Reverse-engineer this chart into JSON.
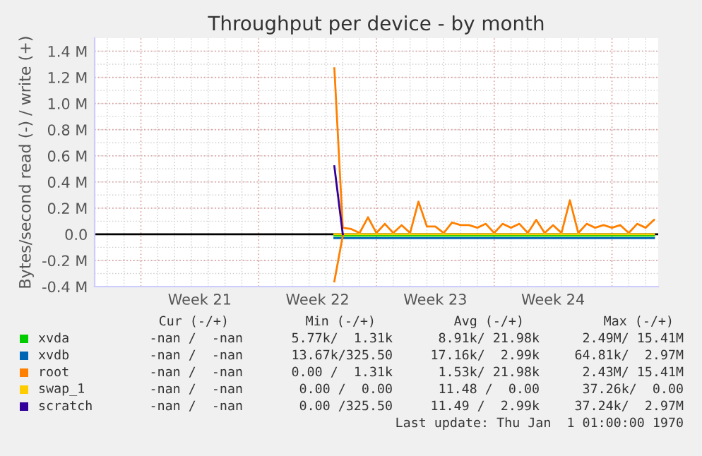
{
  "chart_data": {
    "type": "line",
    "title": "Throughput per device - by month",
    "ylabel": "Bytes/second read (-) / write (+)",
    "categories": [
      null,
      null,
      null,
      null,
      null,
      null,
      null,
      null,
      null,
      null,
      null,
      null,
      "Week 21",
      null,
      null,
      null,
      null,
      null,
      null,
      null,
      null,
      null,
      null,
      null,
      null,
      null,
      "Week 22",
      null,
      null,
      null,
      null,
      null,
      null,
      null,
      null,
      null,
      null,
      null,
      null,
      null,
      "Week 23",
      null,
      null,
      null,
      null,
      null,
      null,
      null,
      null,
      null,
      null,
      null,
      null,
      null,
      "Week 24",
      null,
      null,
      null,
      null,
      null,
      null,
      null,
      null,
      null,
      null,
      null,
      null
    ],
    "ylim": [
      -0.4,
      1.5
    ],
    "yticks": [
      {
        "value": -0.4,
        "label": "-0.4 M"
      },
      {
        "value": -0.2,
        "label": "-0.2 M"
      },
      {
        "value": 0,
        "label": "0.0"
      },
      {
        "value": 0.2,
        "label": "0.2 M"
      },
      {
        "value": 0.4,
        "label": "0.4 M"
      },
      {
        "value": 0.6,
        "label": "0.6 M"
      },
      {
        "value": 0.8,
        "label": "0.8 M"
      },
      {
        "value": 1.0,
        "label": "1.0 M"
      },
      {
        "value": 1.2,
        "label": "1.2 M"
      },
      {
        "value": 1.4,
        "label": "1.4 M"
      }
    ],
    "grid": true,
    "legend": "bottom",
    "ref_lines": [
      {
        "axis": "y",
        "value": 0,
        "color": "#000000"
      }
    ],
    "series": [
      {
        "name": "xvda",
        "color": "#00cc00",
        "values": [
          null,
          null,
          null,
          null,
          null,
          null,
          null,
          null,
          null,
          null,
          null,
          null,
          null,
          null,
          null,
          null,
          null,
          null,
          null,
          null,
          null,
          null,
          null,
          null,
          null,
          null,
          null,
          null,
          -0.01,
          -0.01,
          -0.01,
          -0.01,
          -0.01,
          -0.01,
          -0.01,
          -0.01,
          -0.01,
          -0.01,
          -0.01,
          -0.01,
          -0.01,
          -0.01,
          -0.01,
          -0.01,
          -0.01,
          -0.01,
          -0.01,
          -0.01,
          -0.01,
          -0.01,
          -0.01,
          -0.01,
          -0.01,
          -0.01,
          -0.01,
          -0.01,
          -0.01,
          -0.01,
          -0.01,
          -0.01,
          -0.01,
          -0.01,
          -0.01,
          -0.01,
          -0.01,
          -0.01,
          -0.01
        ]
      },
      {
        "name": "xvdb",
        "color": "#0066b3",
        "values": [
          null,
          null,
          null,
          null,
          null,
          null,
          null,
          null,
          null,
          null,
          null,
          null,
          null,
          null,
          null,
          null,
          null,
          null,
          null,
          null,
          null,
          null,
          null,
          null,
          null,
          null,
          null,
          null,
          -0.03,
          -0.03,
          -0.03,
          -0.03,
          -0.03,
          -0.03,
          -0.03,
          -0.03,
          -0.03,
          -0.03,
          -0.03,
          -0.03,
          -0.03,
          -0.03,
          -0.03,
          -0.03,
          -0.03,
          -0.03,
          -0.03,
          -0.03,
          -0.03,
          -0.03,
          -0.03,
          -0.03,
          -0.03,
          -0.03,
          -0.03,
          -0.03,
          -0.03,
          -0.03,
          -0.03,
          -0.03,
          -0.03,
          -0.03,
          -0.03,
          -0.03,
          -0.03,
          -0.03,
          -0.03
        ]
      },
      {
        "name": "root",
        "color": "#ff8000",
        "values": [
          null,
          null,
          null,
          null,
          null,
          null,
          null,
          null,
          null,
          null,
          null,
          null,
          null,
          null,
          null,
          null,
          null,
          null,
          null,
          null,
          null,
          null,
          null,
          null,
          null,
          null,
          null,
          null,
          1.27,
          0.05,
          0.04,
          0.01,
          0.13,
          0.01,
          0.08,
          0.01,
          0.07,
          0.01,
          0.25,
          0.06,
          0.06,
          0.01,
          0.09,
          0.07,
          0.07,
          0.05,
          0.08,
          0.01,
          0.08,
          0.05,
          0.08,
          0.01,
          0.11,
          0.01,
          0.07,
          0.01,
          0.26,
          0.01,
          0.08,
          0.05,
          0.07,
          0.05,
          0.07,
          0.01,
          0.08,
          0.05,
          0.11
        ]
      },
      {
        "color": "#ff8000",
        "values": [
          null,
          null,
          null,
          null,
          null,
          null,
          null,
          null,
          null,
          null,
          null,
          null,
          null,
          null,
          null,
          null,
          null,
          null,
          null,
          null,
          null,
          null,
          null,
          null,
          null,
          null,
          null,
          null,
          -0.36,
          -0.01,
          null,
          null,
          null,
          null,
          null,
          null,
          null,
          null,
          null,
          null,
          null,
          null,
          null,
          null,
          null,
          null,
          null,
          null,
          null,
          null,
          null,
          null,
          null,
          null,
          null,
          null,
          null,
          null,
          null,
          null,
          null,
          null,
          null,
          null,
          null,
          null,
          null
        ]
      },
      {
        "name": "swap_1",
        "color": "#ffcc00",
        "values": [
          null,
          null,
          null,
          null,
          null,
          null,
          null,
          null,
          null,
          null,
          null,
          null,
          null,
          null,
          null,
          null,
          null,
          null,
          null,
          null,
          null,
          null,
          null,
          null,
          null,
          null,
          null,
          null,
          0,
          0,
          0,
          0,
          0,
          0,
          0,
          0,
          0,
          0,
          0,
          0,
          0,
          0,
          0,
          0,
          0,
          0,
          0,
          0,
          0,
          0,
          0,
          0,
          0,
          0,
          0,
          0,
          0,
          0,
          0,
          0,
          0,
          0,
          0,
          0,
          0,
          0,
          0
        ]
      },
      {
        "name": "scratch",
        "color": "#330099",
        "values": [
          null,
          null,
          null,
          null,
          null,
          null,
          null,
          null,
          null,
          null,
          null,
          null,
          null,
          null,
          null,
          null,
          null,
          null,
          null,
          null,
          null,
          null,
          null,
          null,
          null,
          null,
          null,
          null,
          0.52,
          0,
          null,
          null,
          null,
          null,
          null,
          null,
          null,
          null,
          null,
          null,
          null,
          null,
          null,
          null,
          null,
          null,
          null,
          null,
          null,
          null,
          null,
          null,
          null,
          null,
          null,
          null,
          null,
          null,
          null,
          null,
          null,
          null,
          null,
          null,
          null,
          null,
          null
        ]
      }
    ],
    "annotations": [
      "Cur (-/+)",
      "Min (-/+)",
      "Avg (-/+)",
      "Max (-/+)",
      "-nan /  -nan",
      "5.77k/  1.31k",
      "8.91k/ 21.98k",
      "2.49M/ 15.41M",
      "-nan /  -nan",
      "13.67k/325.50",
      "17.16k/  2.99k",
      "64.81k/  2.97M",
      "-nan /  -nan",
      "0.00 /  1.31k",
      "1.53k/ 21.98k",
      "2.43M/ 15.41M",
      "-nan /  -nan",
      "0.00 /  0.00",
      "11.48 /  0.00",
      "37.26k/  0.00",
      "-nan /  -nan",
      "0.00 /325.50",
      "11.49 /  2.99k",
      "37.24k/  2.97M",
      "Last update: Thu Jan  1 01:00:00 1970"
    ]
  }
}
